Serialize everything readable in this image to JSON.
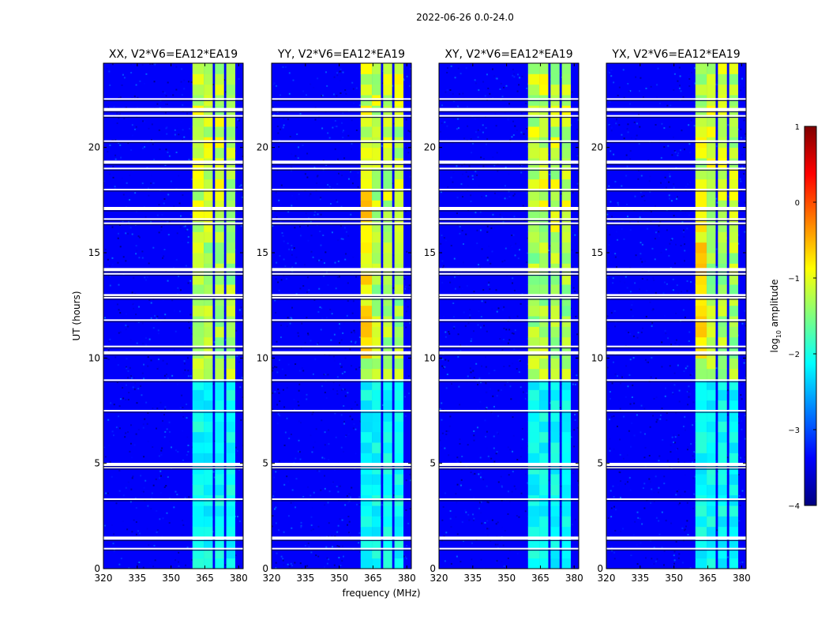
{
  "suptitle": "2022-06-26 0.0-24.0",
  "xlabel": "frequency (MHz)",
  "ylabel": "UT (hours)",
  "colorbar": {
    "label_prefix": "log",
    "label_sub": "10",
    "label_suffix": " amplitude",
    "ticks": [
      {
        "value": 1,
        "label": "1"
      },
      {
        "value": 0,
        "label": "0"
      },
      {
        "value": -1,
        "label": "−1"
      },
      {
        "value": -2,
        "label": "−2"
      },
      {
        "value": -3,
        "label": "−3"
      },
      {
        "value": -4,
        "label": "−4"
      }
    ],
    "vmin": -4,
    "vmax": 1,
    "colormap": "jet",
    "stops": [
      "#00007f",
      "#0000ff",
      "#007fff",
      "#00ffff",
      "#7fff7f",
      "#ffff00",
      "#ff7f00",
      "#ff0000",
      "#7f0000"
    ]
  },
  "chart_data": {
    "type": "heatmap",
    "xlim": [
      320,
      382
    ],
    "ylim": [
      0,
      24
    ],
    "xticks": [
      320,
      335,
      350,
      365,
      380
    ],
    "yticks": [
      0,
      5,
      10,
      15,
      20
    ],
    "panels": [
      {
        "title": "XX, V2*V6=EA12*EA19"
      },
      {
        "title": "YY, V2*V6=EA12*EA19"
      },
      {
        "title": "XY, V2*V6=EA12*EA19"
      },
      {
        "title": "YX, V2*V6=EA12*EA19"
      }
    ],
    "background_level": -3.4,
    "signal_bands_mhz": [
      [
        359.5,
        364.5
      ],
      [
        364.5,
        368.5
      ],
      [
        369.5,
        373.5
      ],
      [
        374.5,
        378.5
      ]
    ],
    "flagged_rows_hours": [
      0.95,
      1.45,
      3.3,
      4.8,
      4.95,
      7.5,
      8.95,
      10.25,
      10.55,
      11.8,
      12.9,
      13.0,
      14.0,
      14.2,
      16.4,
      16.6,
      17.1,
      18.0,
      19.0,
      19.3,
      20.3,
      21.5,
      21.8,
      22.3
    ]
  }
}
